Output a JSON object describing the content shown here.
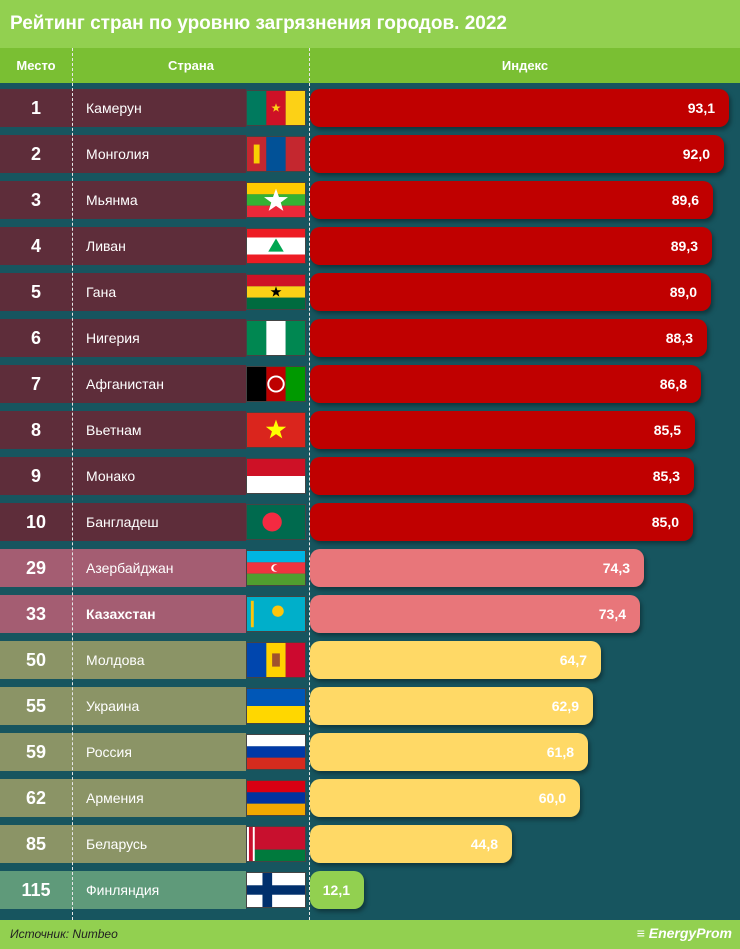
{
  "title": "Рейтинг стран по уровню загрязнения городов. 2022",
  "header": {
    "rank": "Место",
    "country": "Страна",
    "index": "Индекс"
  },
  "source": "Источник: Numbeo",
  "logo": "EnergyProm",
  "colors": {
    "top10_row": "#5e2d3a",
    "top10_bar": "#c00000",
    "mid_row": "#a45d72",
    "mid_bar": "#e8767a",
    "low_row": "#8b9466",
    "low_bar": "#ffd966",
    "best_row": "#5f9a7a",
    "best_bar": "#92d050"
  },
  "chart_data": {
    "type": "bar",
    "orientation": "horizontal",
    "title": "Рейтинг стран по уровню загрязнения городов. 2022",
    "categories": [
      "Камерун",
      "Монголия",
      "Мьянма",
      "Ливан",
      "Гана",
      "Нигерия",
      "Афганистан",
      "Вьетнам",
      "Монако",
      "Бангладеш",
      "Азербайджан",
      "Казахстан",
      "Молдова",
      "Украина",
      "Россия",
      "Армения",
      "Беларусь",
      "Финляндия"
    ],
    "ranks": [
      "1",
      "2",
      "3",
      "4",
      "5",
      "6",
      "7",
      "8",
      "9",
      "10",
      "29",
      "33",
      "50",
      "55",
      "59",
      "62",
      "85",
      "115"
    ],
    "values": [
      93.1,
      92.0,
      89.6,
      89.3,
      89.0,
      88.3,
      86.8,
      85.5,
      85.3,
      85.0,
      74.3,
      73.4,
      64.7,
      62.9,
      61.8,
      60.0,
      44.8,
      12.1
    ],
    "labels": [
      "93,1",
      "92,0",
      "89,6",
      "89,3",
      "89,0",
      "88,3",
      "86,8",
      "85,5",
      "85,3",
      "85,0",
      "74,3",
      "73,4",
      "64,7",
      "62,9",
      "61,8",
      "60,0",
      "44,8",
      "12,1"
    ],
    "groups": [
      "top10",
      "top10",
      "top10",
      "top10",
      "top10",
      "top10",
      "top10",
      "top10",
      "top10",
      "top10",
      "mid",
      "mid",
      "low",
      "low",
      "low",
      "low",
      "low",
      "best"
    ],
    "flags": [
      "cameroon-flag",
      "mongolia-flag",
      "myanmar-flag",
      "lebanon-flag",
      "ghana-flag",
      "nigeria-flag",
      "afghanistan-flag",
      "vietnam-flag",
      "monaco-flag",
      "bangladesh-flag",
      "azerbaijan-flag",
      "kazakhstan-flag",
      "moldova-flag",
      "ukraine-flag",
      "russia-flag",
      "armenia-flag",
      "belarus-flag",
      "finland-flag"
    ],
    "highlight": "Казахстан"
  }
}
